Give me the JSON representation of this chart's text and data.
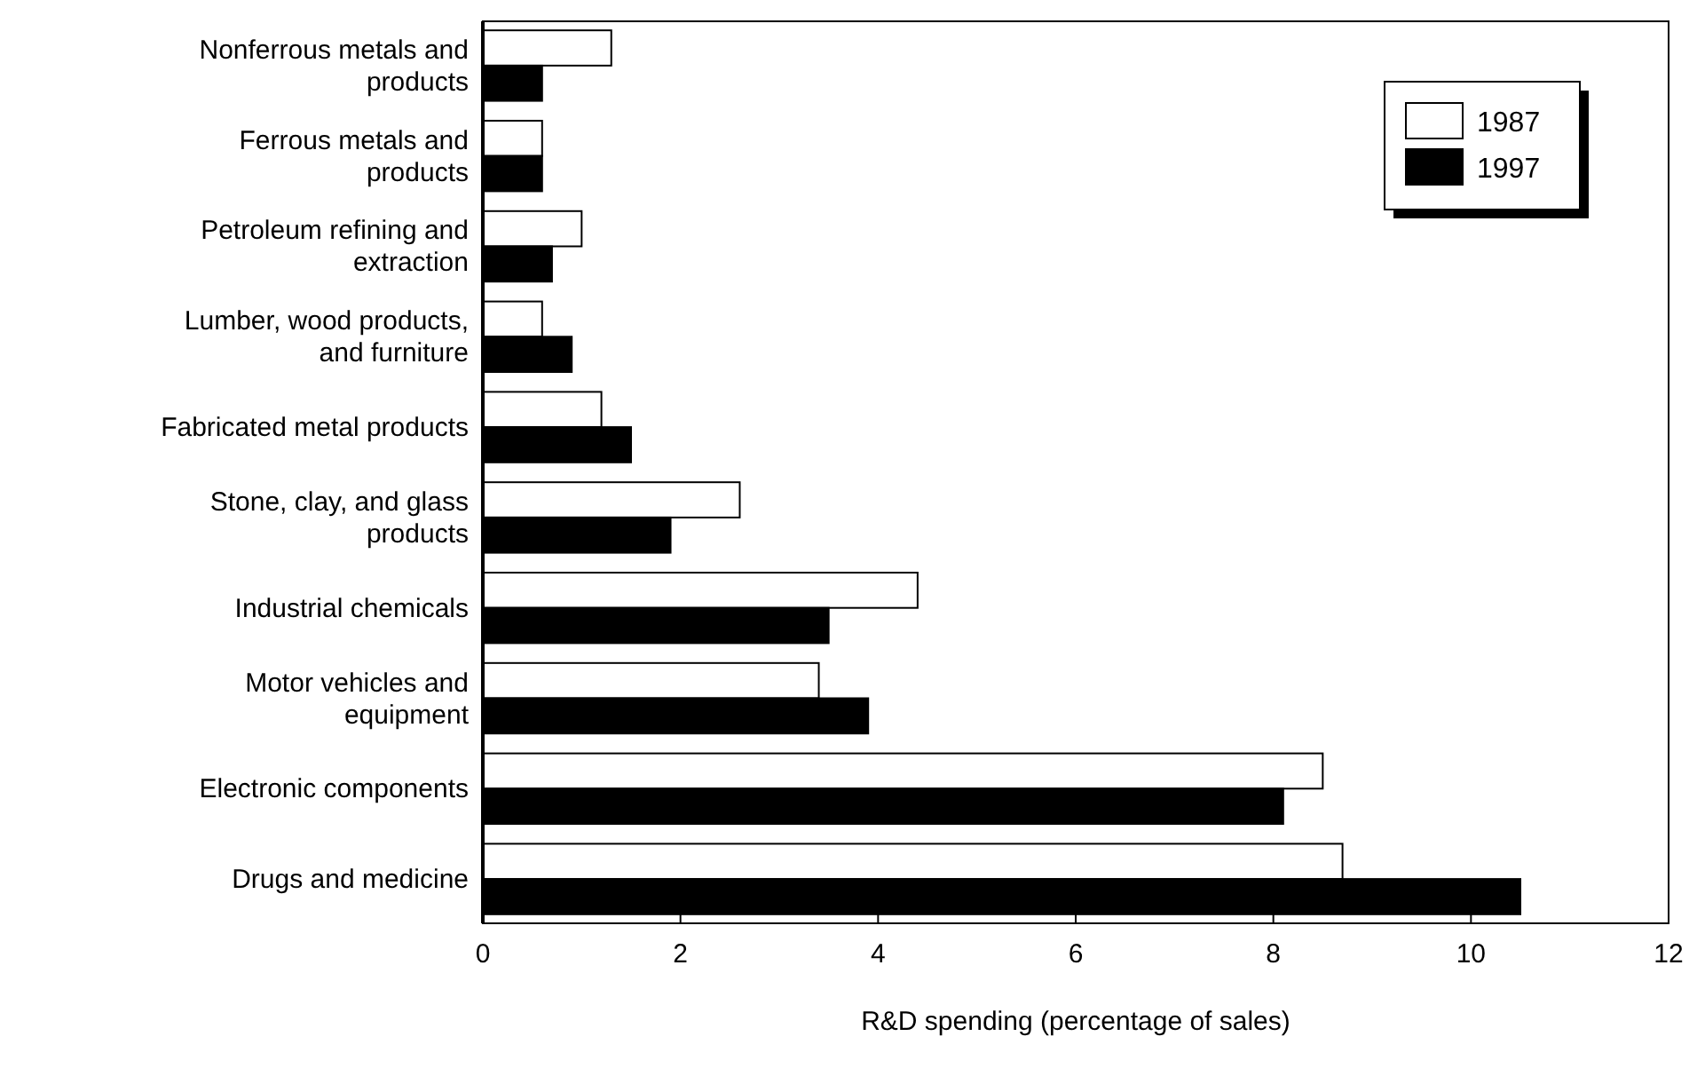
{
  "chart_data": {
    "type": "bar",
    "orientation": "horizontal",
    "xlabel": "R&D spending (percentage of sales)",
    "categories": [
      "Nonferrous metals and products",
      "Ferrous metals and products",
      "Petroleum refining and extraction",
      "Lumber, wood products, and furniture",
      "Fabricated metal products",
      "Stone, clay, and glass products",
      "Industrial chemicals",
      "Motor vehicles and equipment",
      "Electronic components",
      "Drugs and medicine"
    ],
    "series": [
      {
        "name": "1987",
        "color": "#ffffff",
        "values": [
          1.3,
          0.6,
          1.0,
          0.6,
          1.2,
          2.6,
          4.4,
          3.4,
          8.5,
          8.7
        ]
      },
      {
        "name": "1997",
        "color": "#000000",
        "values": [
          0.6,
          0.6,
          0.7,
          0.9,
          1.5,
          1.9,
          3.5,
          3.9,
          8.1,
          10.5
        ]
      }
    ],
    "xlim": [
      0,
      12
    ],
    "xticks": [
      0,
      2,
      4,
      6,
      8,
      10,
      12
    ],
    "grid": false,
    "legend": "top right"
  }
}
